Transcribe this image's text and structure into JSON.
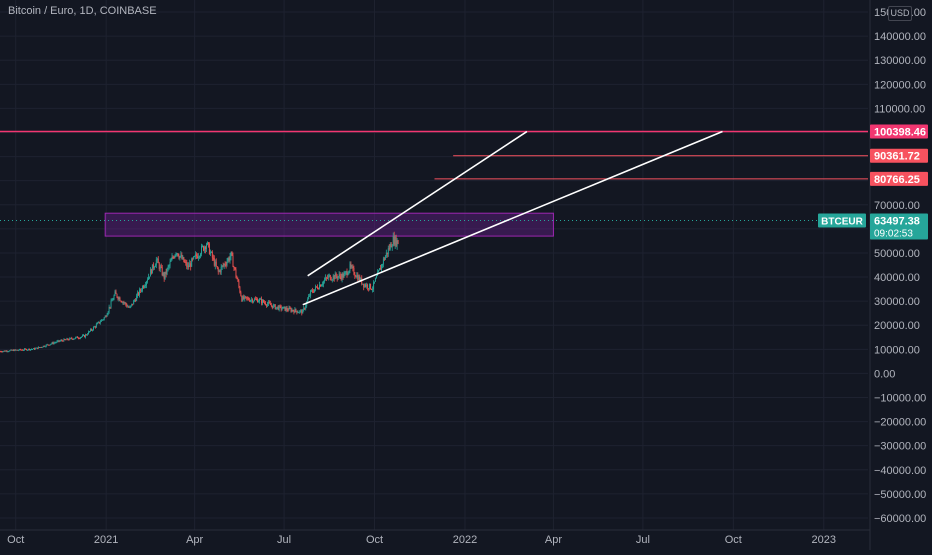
{
  "header": {
    "symbol_title": "Bitcoin / Euro, 1D, COINBASE",
    "currency_button": "USD"
  },
  "colors": {
    "background": "#131722",
    "grid": "#1e2230",
    "axis_text": "#b2b5be",
    "candle_up": "#26a69a",
    "candle_down": "#ef5350",
    "resistance": "#f23670",
    "target": "#f7525f",
    "trendline": "#ffffff",
    "zone_fill": "#7b1fa2",
    "zone_border": "#9c27b0",
    "price_label": "#26a69a"
  },
  "chart_data": {
    "type": "candlestick",
    "title": "Bitcoin / Euro, 1D, COINBASE",
    "xlim": [
      "2020-09-15",
      "2023-02-15"
    ],
    "ylim": [
      -65000,
      155000
    ],
    "y_ticks": [
      150000,
      140000,
      130000,
      120000,
      110000,
      100000,
      90000,
      80000,
      70000,
      60000,
      50000,
      40000,
      30000,
      20000,
      10000,
      0,
      -10000,
      -20000,
      -30000,
      -40000,
      -50000,
      -60000
    ],
    "y_tick_labels": [
      "150000.00",
      "140000.00",
      "130000.00",
      "120000.00",
      "110000.00",
      "",
      "",
      "",
      "70000.00",
      "",
      "50000.00",
      "40000.00",
      "30000.00",
      "20000.00",
      "10000.00",
      "0.00",
      "−10000.00",
      "−20000.00",
      "−30000.00",
      "−40000.00",
      "−50000.00",
      "−60000.00"
    ],
    "x_ticks": [
      {
        "date": "2020-10-01",
        "label": "Oct"
      },
      {
        "date": "2021-01-01",
        "label": "2021"
      },
      {
        "date": "2021-04-01",
        "label": "Apr"
      },
      {
        "date": "2021-07-01",
        "label": "Jul"
      },
      {
        "date": "2021-10-01",
        "label": "Oct"
      },
      {
        "date": "2022-01-01",
        "label": "2022"
      },
      {
        "date": "2022-04-01",
        "label": "Apr"
      },
      {
        "date": "2022-07-01",
        "label": "Jul"
      },
      {
        "date": "2022-10-01",
        "label": "Oct"
      },
      {
        "date": "2023-01-01",
        "label": "2023"
      }
    ],
    "price_path": [
      [
        "2020-09-15",
        9200
      ],
      [
        "2020-10-20",
        10200
      ],
      [
        "2020-11-15",
        13500
      ],
      [
        "2020-12-10",
        15500
      ],
      [
        "2020-12-31",
        23500
      ],
      [
        "2021-01-10",
        33000
      ],
      [
        "2021-01-25",
        27000
      ],
      [
        "2021-02-10",
        38000
      ],
      [
        "2021-02-21",
        47000
      ],
      [
        "2021-03-01",
        40000
      ],
      [
        "2021-03-13",
        51000
      ],
      [
        "2021-03-25",
        44000
      ],
      [
        "2021-04-13",
        54000
      ],
      [
        "2021-04-25",
        42000
      ],
      [
        "2021-05-08",
        49000
      ],
      [
        "2021-05-19",
        31000
      ],
      [
        "2021-06-05",
        30500
      ],
      [
        "2021-06-22",
        27500
      ],
      [
        "2021-07-20",
        25500
      ],
      [
        "2021-07-28",
        33500
      ],
      [
        "2021-08-15",
        40000
      ],
      [
        "2021-08-31",
        40500
      ],
      [
        "2021-09-06",
        44000
      ],
      [
        "2021-09-20",
        37000
      ],
      [
        "2021-09-29",
        35500
      ],
      [
        "2021-10-10",
        47000
      ],
      [
        "2021-10-20",
        55500
      ],
      [
        "2021-10-25",
        54500
      ]
    ],
    "zone": {
      "x_start": "2020-12-31",
      "x_end": "2022-04-01",
      "y_bottom": 57000,
      "y_top": 66500
    },
    "trendlines": [
      {
        "x1": "2021-07-25",
        "y1": 40500,
        "x2": "2022-03-05",
        "y2": 100398
      },
      {
        "x1": "2021-07-20",
        "y1": 28500,
        "x2": "2022-09-20",
        "y2": 100398
      }
    ],
    "levels": [
      {
        "value": 100398.46,
        "label": "100398.46",
        "x_start": "2020-09-15",
        "style": "resistance"
      },
      {
        "value": 90361.72,
        "label": "90361.72",
        "x_start": "2021-12-20",
        "style": "target"
      },
      {
        "value": 80766.25,
        "label": "80766.25",
        "x_start": "2021-12-01",
        "style": "target"
      }
    ],
    "last_price": {
      "symbol": "BTCEUR",
      "value": 63497.38,
      "label": "63497.38",
      "countdown": "09:02:53"
    }
  }
}
